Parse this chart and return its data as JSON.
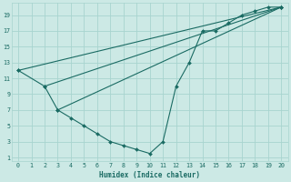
{
  "xlabel": "Humidex (Indice chaleur)",
  "bg_color": "#cce9e5",
  "grid_color": "#a8d4cf",
  "line_color": "#1a6b63",
  "xlim": [
    -0.5,
    20.5
  ],
  "ylim": [
    0.5,
    20.5
  ],
  "xticks": [
    0,
    1,
    2,
    3,
    4,
    5,
    6,
    7,
    8,
    9,
    10,
    11,
    12,
    13,
    14,
    15,
    16,
    17,
    18,
    19,
    20
  ],
  "yticks": [
    1,
    3,
    5,
    7,
    9,
    11,
    13,
    15,
    17,
    19
  ],
  "series": [
    {
      "x": [
        0,
        2,
        3,
        4,
        5,
        6,
        7,
        8,
        9,
        10,
        11,
        12,
        13,
        14,
        15,
        16,
        17,
        18,
        19,
        20
      ],
      "y": [
        12,
        10,
        7,
        6,
        5,
        4,
        3,
        2.5,
        2,
        1.5,
        3,
        10,
        13,
        17,
        17,
        18,
        19,
        19.5,
        20,
        20
      ]
    },
    {
      "x": [
        0,
        20
      ],
      "y": [
        12,
        20
      ]
    },
    {
      "x": [
        2,
        20
      ],
      "y": [
        10,
        20
      ]
    },
    {
      "x": [
        3,
        20
      ],
      "y": [
        7,
        20
      ]
    }
  ]
}
